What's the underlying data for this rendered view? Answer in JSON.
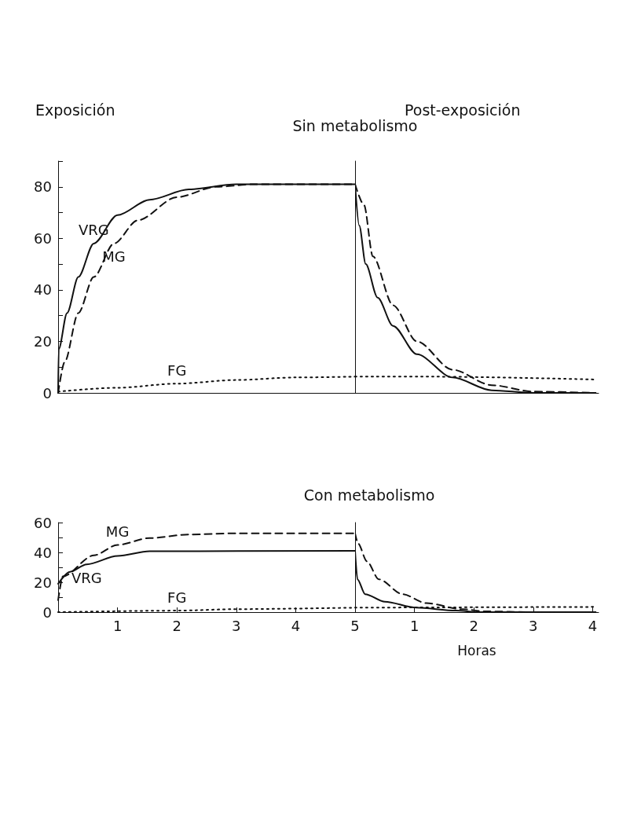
{
  "chart_data": [
    {
      "type": "line",
      "title": "Exposición",
      "xlim": [
        0,
        5
      ],
      "ylim": [
        0,
        90
      ],
      "yticks": [
        0,
        {
          "value": 10,
          "label": null
        },
        20,
        {
          "value": 30,
          "label": null
        },
        40,
        {
          "value": 50,
          "label": null
        },
        60,
        {
          "value": 70,
          "label": null
        },
        80,
        {
          "value": 90,
          "label": null
        }
      ],
      "tick_labels": "y",
      "grid": false,
      "marker": "none",
      "annotations": [
        "Sin metabolismo"
      ],
      "series": [
        {
          "name": "VRG",
          "color": "#111111",
          "line_style": "solid",
          "x": [
            0,
            0.01,
            0.15,
            0.34,
            0.6,
            1.0,
            1.54,
            2.2,
            3,
            5
          ],
          "values": [
            0,
            17,
            31,
            45,
            58,
            69,
            75,
            79,
            81,
            81
          ]
        },
        {
          "name": "MG",
          "color": "#111111",
          "line_style": "dashed",
          "x": [
            0,
            0.11,
            0.34,
            0.6,
            0.94,
            1.34,
            2,
            2.66,
            3.3,
            5
          ],
          "values": [
            0,
            12,
            31,
            45,
            58,
            67,
            76,
            80,
            81,
            81
          ]
        },
        {
          "name": "FG",
          "color": "#111111",
          "line_style": "dotted",
          "x": [
            0,
            1,
            2,
            3,
            4,
            5
          ],
          "values": [
            0.5,
            2,
            3.6,
            5,
            6,
            6.3
          ]
        }
      ]
    },
    {
      "type": "line",
      "title": "Post-exposición",
      "xlim": [
        0,
        4.1
      ],
      "ylim": [
        0,
        90
      ],
      "tick_labels": false,
      "grid": false,
      "marker": "none",
      "series": [
        {
          "color": "#111111",
          "line_style": "solid",
          "x": [
            0,
            0.07,
            0.18,
            0.38,
            0.64,
            1.04,
            1.64,
            2.3,
            3,
            4.05
          ],
          "values": [
            81,
            65,
            50,
            37,
            26,
            15,
            6,
            1,
            0,
            0
          ]
        },
        {
          "color": "#111111",
          "line_style": "dashed",
          "x": [
            0,
            0.15,
            0.3,
            0.64,
            1.04,
            1.64,
            2.3,
            3,
            4.05
          ],
          "values": [
            81,
            73,
            53,
            34,
            20,
            9,
            3,
            0.5,
            0
          ]
        },
        {
          "color": "#111111",
          "line_style": "dotted",
          "x": [
            0,
            1.3,
            4.05
          ],
          "values": [
            6.3,
            6.3,
            5.2
          ]
        }
      ]
    },
    {
      "type": "line",
      "xlim": [
        0,
        5
      ],
      "ylim": [
        0,
        60
      ],
      "xticks": [
        1,
        2,
        3,
        4,
        5
      ],
      "yticks": [
        0,
        {
          "value": 10,
          "label": null
        },
        20,
        {
          "value": 30,
          "label": null
        },
        40,
        {
          "value": 50,
          "label": null
        },
        60
      ],
      "grid": false,
      "marker": "none",
      "annotations": [
        "Con metabolismo"
      ],
      "series": [
        {
          "name": "VRG",
          "color": "#111111",
          "line_style": "solid",
          "x": [
            0,
            0.2,
            0.48,
            1,
            1.54,
            5
          ],
          "values": [
            19,
            27,
            32,
            37.6,
            40.8,
            41
          ]
        },
        {
          "name": "MG",
          "color": "#111111",
          "line_style": "dashed",
          "x": [
            0,
            0.08,
            0.6,
            1,
            1.54,
            2.2,
            3,
            5
          ],
          "values": [
            8,
            24,
            38,
            45,
            49.6,
            52,
            52.8,
            52.8
          ]
        },
        {
          "name": "FG",
          "color": "#111111",
          "line_style": "dotted",
          "x": [
            0,
            2,
            3,
            5
          ],
          "values": [
            0,
            1,
            2,
            3
          ]
        }
      ]
    },
    {
      "type": "line",
      "xlabel": "Horas",
      "xlim": [
        0,
        4.1
      ],
      "ylim": [
        0,
        60
      ],
      "xticks": [
        1,
        2,
        3,
        4
      ],
      "tick_labels": "x",
      "grid": false,
      "marker": "none",
      "series": [
        {
          "color": "#111111",
          "line_style": "solid",
          "x": [
            0,
            0.04,
            0.17,
            0.5,
            1.03,
            1.7,
            2.08,
            4.05
          ],
          "values": [
            41,
            22,
            12,
            7,
            3,
            1,
            0,
            0
          ]
        },
        {
          "color": "#111111",
          "line_style": "dashed",
          "x": [
            0,
            0.05,
            0.2,
            0.4,
            0.8,
            1.2,
            1.8,
            2.2,
            3,
            4.05
          ],
          "values": [
            52.8,
            46,
            34,
            22,
            12,
            6,
            2,
            0.5,
            0,
            0
          ]
        },
        {
          "color": "#111111",
          "line_style": "dotted",
          "x": [
            0,
            4.05
          ],
          "values": [
            3,
            3.5
          ]
        }
      ]
    }
  ]
}
